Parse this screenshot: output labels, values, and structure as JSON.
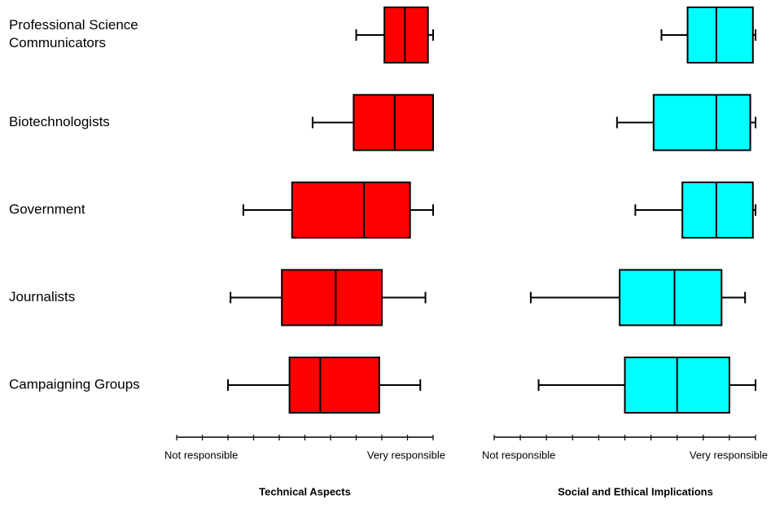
{
  "chart_data": [
    {
      "type": "box",
      "title": "Technical Aspects",
      "color": "#ff0000",
      "categories": [
        "Professional Science\nCommunicators",
        "Biotechnologists",
        "Government",
        "Journalists",
        "Campaigning Groups"
      ],
      "boxes": [
        {
          "min": 7.0,
          "q1": 8.1,
          "median": 8.9,
          "q3": 9.8,
          "max": 10
        },
        {
          "min": 5.3,
          "q1": 6.9,
          "median": 8.5,
          "q3": 10,
          "max": 10
        },
        {
          "min": 2.6,
          "q1": 4.5,
          "median": 7.3,
          "q3": 9.1,
          "max": 10
        },
        {
          "min": 2.1,
          "q1": 4.1,
          "median": 6.2,
          "q3": 8.0,
          "max": 9.7
        },
        {
          "min": 2.0,
          "q1": 4.4,
          "median": 5.6,
          "q3": 7.9,
          "max": 9.5
        }
      ],
      "xlim": [
        0,
        10
      ],
      "xticks": [
        {
          "value": 0,
          "label": "Not responsible"
        },
        1,
        2,
        3,
        4,
        5,
        6,
        7,
        8,
        9,
        {
          "value": 10,
          "label": "Very responsible"
        }
      ]
    },
    {
      "type": "box",
      "title": "Social and Ethical Implications",
      "color": "#00ffff",
      "boxes": [
        {
          "min": 6.4,
          "q1": 7.4,
          "median": 8.5,
          "q3": 9.9,
          "max": 10
        },
        {
          "min": 4.7,
          "q1": 6.1,
          "median": 8.5,
          "q3": 9.8,
          "max": 10
        },
        {
          "min": 5.4,
          "q1": 7.2,
          "median": 8.5,
          "q3": 9.9,
          "max": 10
        },
        {
          "min": 1.4,
          "q1": 4.8,
          "median": 6.9,
          "q3": 8.7,
          "max": 9.6
        },
        {
          "min": 1.7,
          "q1": 5.0,
          "median": 7.0,
          "q3": 9.0,
          "max": 10
        }
      ],
      "xlim": [
        0,
        10
      ],
      "xticks": [
        {
          "value": 0,
          "label": "Not responsible"
        },
        1,
        2,
        3,
        4,
        5,
        6,
        7,
        8,
        9,
        {
          "value": 10,
          "label": "Very responsible"
        }
      ]
    }
  ]
}
